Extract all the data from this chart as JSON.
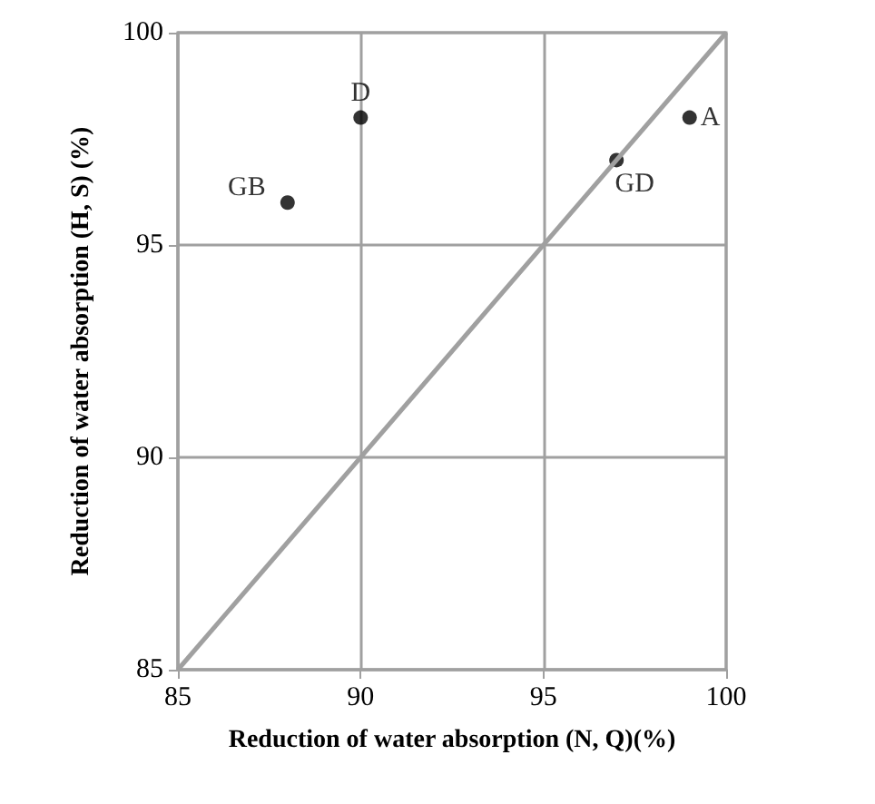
{
  "chart_data": {
    "type": "scatter",
    "xlabel": "Reduction of water absorption (N, Q)(%)",
    "ylabel": "Reduction of water absorption (H, S) (%)",
    "xlim": [
      85,
      100
    ],
    "ylim": [
      85,
      100
    ],
    "xticks": [
      85,
      90,
      95,
      100
    ],
    "yticks": [
      85,
      90,
      95,
      100
    ],
    "grid": true,
    "series": [
      {
        "type": "line",
        "marker": "none",
        "color": "#a0a0a0",
        "x": [
          85,
          100
        ],
        "values": [
          85,
          100
        ]
      },
      {
        "marker": "circle",
        "color": "#000000",
        "x": [
          88,
          90,
          97,
          99
        ],
        "values": [
          96,
          98,
          97,
          98
        ]
      }
    ],
    "annotations": [
      {
        "text": "GB",
        "x": 88,
        "y": 96
      },
      {
        "text": "D",
        "x": 90,
        "y": 98
      },
      {
        "text": "GD",
        "x": 97,
        "y": 97
      },
      {
        "text": "A",
        "x": 99,
        "y": 98
      }
    ]
  }
}
